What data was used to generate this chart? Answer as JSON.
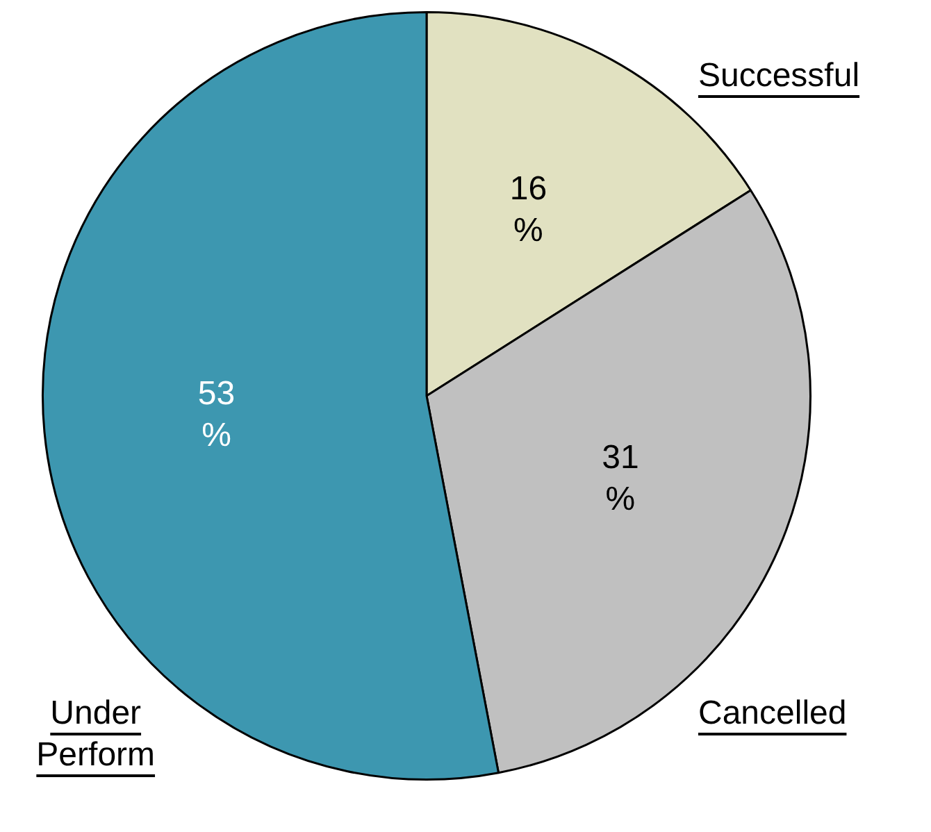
{
  "chart_data": {
    "type": "pie",
    "categories": [
      "Successful",
      "Cancelled",
      "Under Perform"
    ],
    "values": [
      16,
      31,
      53
    ],
    "colors": [
      "#e1e1c1",
      "#c0c0c0",
      "#3d97b0"
    ],
    "value_labels": [
      "16\n%",
      "31\n%",
      "53\n%"
    ],
    "legend": false
  }
}
